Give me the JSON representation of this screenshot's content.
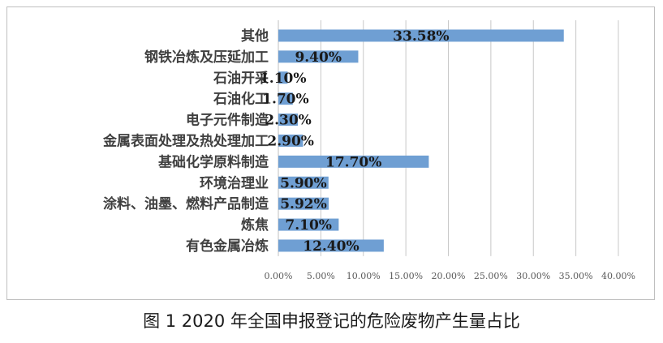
{
  "caption": "图 1  2020 年全国申报登记的危险废物产生量占比",
  "chart_data": {
    "type": "bar",
    "orientation": "horizontal",
    "categories": [
      "其他",
      "钢铁冶炼及压延加工",
      "石油开采",
      "石油化工",
      "电子元件制造",
      "金属表面处理及热处理加工",
      "基础化学原料制造",
      "环境治理业",
      "涂料、油墨、燃料产品制造",
      "炼焦",
      "有色金属冶炼"
    ],
    "values": [
      33.58,
      9.4,
      1.1,
      1.7,
      2.3,
      2.9,
      17.7,
      5.9,
      5.92,
      7.1,
      12.4
    ],
    "data_labels": [
      "33.58%",
      "9.40%",
      "1.10%",
      "1.70%",
      "2.30%",
      "2.90%",
      "17.70%",
      "5.90%",
      "5.92%",
      "7.10%",
      "12.40%"
    ],
    "xlim": [
      0,
      40
    ],
    "xticks": [
      0,
      5,
      10,
      15,
      20,
      25,
      30,
      35,
      40
    ],
    "xtick_labels": [
      "0.00%",
      "5.00%",
      "10.00%",
      "15.00%",
      "20.00%",
      "25.00%",
      "30.00%",
      "35.00%",
      "40.00%"
    ],
    "grid": true,
    "bar_color": "#6f9fd3",
    "grid_color": "#c8c8c8"
  }
}
